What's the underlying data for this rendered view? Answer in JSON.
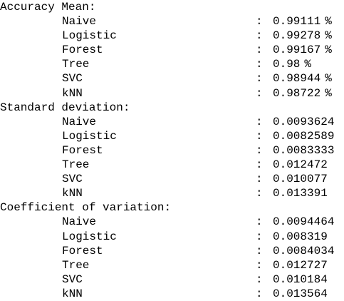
{
  "sections": [
    {
      "title": "Accuracy Mean:",
      "rows": [
        {
          "label": "Naive",
          "value": "0.99111",
          "unit": "%"
        },
        {
          "label": "Logistic",
          "value": "0.99278",
          "unit": "%"
        },
        {
          "label": "Forest",
          "value": "0.99167",
          "unit": "%"
        },
        {
          "label": "Tree",
          "value": "0.98",
          "unit": "%"
        },
        {
          "label": "SVC",
          "value": "0.98944",
          "unit": "%"
        },
        {
          "label": "kNN",
          "value": "0.98722",
          "unit": "%"
        }
      ]
    },
    {
      "title": "Standard deviation:",
      "rows": [
        {
          "label": "Naive",
          "value": "0.0093624",
          "unit": ""
        },
        {
          "label": "Logistic",
          "value": "0.0082589",
          "unit": ""
        },
        {
          "label": "Forest",
          "value": "0.0083333",
          "unit": ""
        },
        {
          "label": "Tree",
          "value": "0.012472",
          "unit": ""
        },
        {
          "label": "SVC",
          "value": "0.010077",
          "unit": ""
        },
        {
          "label": "kNN",
          "value": "0.013391",
          "unit": ""
        }
      ]
    },
    {
      "title": "Coefficient of variation:",
      "rows": [
        {
          "label": "Naive",
          "value": "0.0094464",
          "unit": ""
        },
        {
          "label": "Logistic",
          "value": "0.008319",
          "unit": ""
        },
        {
          "label": "Forest",
          "value": "0.0084034",
          "unit": ""
        },
        {
          "label": "Tree",
          "value": "0.012727",
          "unit": ""
        },
        {
          "label": "SVC",
          "value": "0.010184",
          "unit": ""
        },
        {
          "label": "kNN",
          "value": "0.013564",
          "unit": ""
        }
      ]
    }
  ],
  "separator": ":"
}
